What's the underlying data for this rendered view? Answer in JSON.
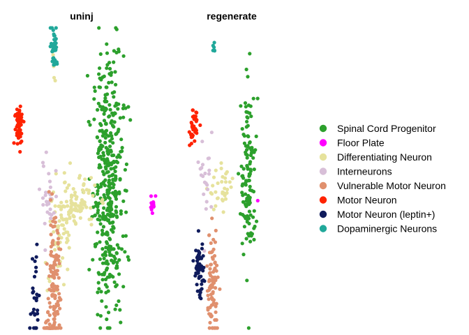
{
  "chart_data": {
    "type": "scatter",
    "facets": [
      "uninj",
      "regenerate"
    ],
    "axes_visible": false,
    "grid": false,
    "legend_position": "right",
    "legend": [
      {
        "name": "Spinal Cord Progenitor",
        "color": "#2ca02c"
      },
      {
        "name": "Floor Plate",
        "color": "#ff00ff"
      },
      {
        "name": "Differentiating Neuron",
        "color": "#e6e29c"
      },
      {
        "name": "Interneurons",
        "color": "#d8bfd8"
      },
      {
        "name": "Vulnerable Motor Neuron",
        "color": "#e0906e"
      },
      {
        "name": "Motor Neuron",
        "color": "#ff2200"
      },
      {
        "name": "Motor Neuron (leptin+)",
        "color": "#0f1b5c"
      },
      {
        "name": "Dopaminergic Neurons",
        "color": "#20a89a"
      }
    ],
    "series": [
      {
        "facet": "uninj",
        "name": "Spinal Cord Progenitor",
        "clusters": [
          {
            "x": 0.6,
            "y": 0.56,
            "sx": 0.07,
            "sy": 0.19,
            "n": 420
          }
        ]
      },
      {
        "facet": "uninj",
        "name": "Floor Plate",
        "clusters": [
          {
            "x": 1.0,
            "y": 0.49,
            "sx": 0.02,
            "sy": 0.02,
            "n": 12
          }
        ]
      },
      {
        "facet": "uninj",
        "name": "Differentiating Neuron",
        "clusters": [
          {
            "x": 0.29,
            "y": 0.5,
            "sx": 0.1,
            "sy": 0.04,
            "n": 100
          },
          {
            "x": 0.17,
            "y": 0.4,
            "sx": 0.04,
            "sy": 0.05,
            "n": 30
          },
          {
            "x": 0.08,
            "y": 0.3,
            "sx": 0.05,
            "sy": 0.03,
            "n": 6
          },
          {
            "x": 0.1,
            "y": 0.89,
            "sx": 0.01,
            "sy": 0.02,
            "n": 4
          }
        ]
      },
      {
        "facet": "uninj",
        "name": "Interneurons",
        "clusters": [
          {
            "x": 0.06,
            "y": 0.52,
            "sx": 0.04,
            "sy": 0.06,
            "n": 30
          }
        ]
      },
      {
        "facet": "uninj",
        "name": "Vulnerable Motor Neuron",
        "clusters": [
          {
            "x": 0.1,
            "y": 0.25,
            "sx": 0.03,
            "sy": 0.1,
            "n": 120
          },
          {
            "x": 0.07,
            "y": 0.09,
            "sx": 0.025,
            "sy": 0.05,
            "n": 70
          }
        ]
      },
      {
        "facet": "uninj",
        "name": "Motor Neuron",
        "clusters": [
          {
            "x": -0.22,
            "y": 0.73,
            "sx": 0.02,
            "sy": 0.03,
            "n": 60
          }
        ]
      },
      {
        "facet": "uninj",
        "name": "Motor Neuron (leptin+)",
        "clusters": [
          {
            "x": -0.07,
            "y": 0.23,
            "sx": 0.02,
            "sy": 0.09,
            "n": 30
          }
        ]
      },
      {
        "facet": "uninj",
        "name": "Dopaminergic Neurons",
        "clusters": [
          {
            "x": 0.1,
            "y": 0.96,
            "sx": 0.015,
            "sy": 0.03,
            "n": 40
          }
        ]
      },
      {
        "facet": "regenerate",
        "name": "Spinal Cord Progenitor",
        "clusters": [
          {
            "x": 0.57,
            "y": 0.58,
            "sx": 0.04,
            "sy": 0.13,
            "n": 130
          }
        ]
      },
      {
        "facet": "regenerate",
        "name": "Floor Plate",
        "clusters": [
          {
            "x": 0.67,
            "y": 0.51,
            "sx": 0.0,
            "sy": 0.0,
            "n": 1
          }
        ]
      },
      {
        "facet": "regenerate",
        "name": "Differentiating Neuron",
        "clusters": [
          {
            "x": 0.29,
            "y": 0.54,
            "sx": 0.07,
            "sy": 0.03,
            "n": 35
          }
        ]
      },
      {
        "facet": "regenerate",
        "name": "Interneurons",
        "clusters": [
          {
            "x": 0.12,
            "y": 0.56,
            "sx": 0.03,
            "sy": 0.07,
            "n": 22
          }
        ]
      },
      {
        "facet": "regenerate",
        "name": "Vulnerable Motor Neuron",
        "clusters": [
          {
            "x": 0.18,
            "y": 0.26,
            "sx": 0.03,
            "sy": 0.08,
            "n": 90
          }
        ]
      },
      {
        "facet": "regenerate",
        "name": "Motor Neuron",
        "clusters": [
          {
            "x": -0.02,
            "y": 0.72,
            "sx": 0.02,
            "sy": 0.025,
            "n": 35
          }
        ]
      },
      {
        "facet": "regenerate",
        "name": "Motor Neuron (leptin+)",
        "clusters": [
          {
            "x": 0.04,
            "y": 0.31,
            "sx": 0.025,
            "sy": 0.04,
            "n": 55
          }
        ]
      },
      {
        "facet": "regenerate",
        "name": "Dopaminergic Neurons",
        "clusters": [
          {
            "x": 0.2,
            "y": 0.95,
            "sx": 0.01,
            "sy": 0.01,
            "n": 6
          }
        ]
      }
    ]
  }
}
